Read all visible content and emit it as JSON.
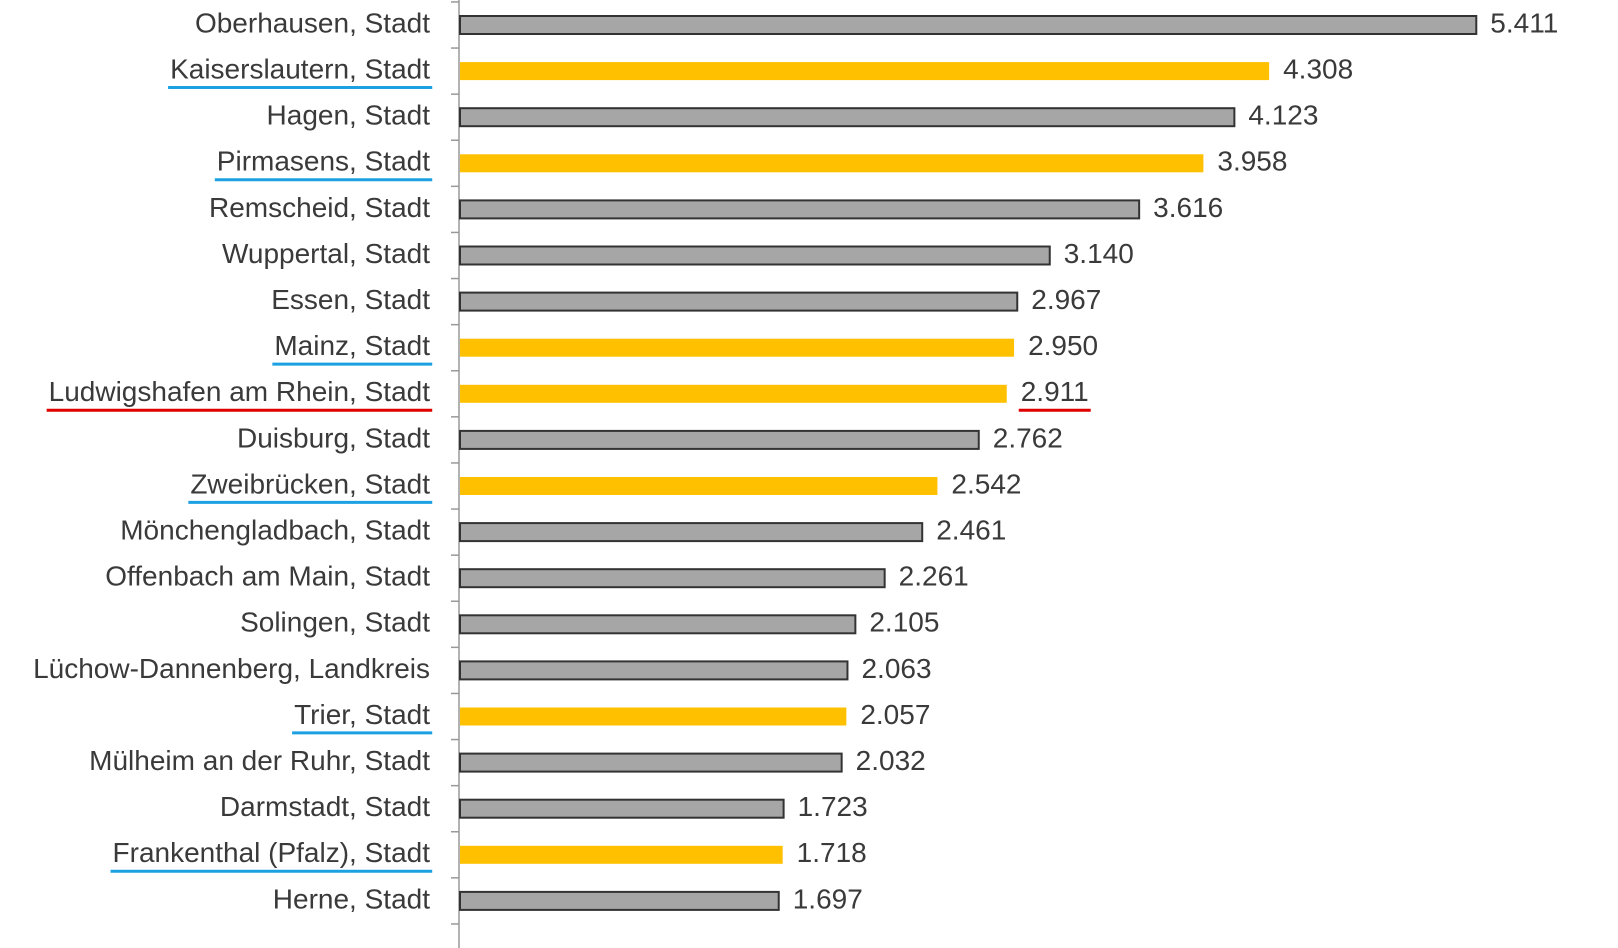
{
  "chart_data": {
    "type": "hbar",
    "categories": [
      "Oberhausen, Stadt",
      "Kaiserslautern, Stadt",
      "Hagen, Stadt",
      "Pirmasens, Stadt",
      "Remscheid, Stadt",
      "Wuppertal, Stadt",
      "Essen, Stadt",
      "Mainz, Stadt",
      "Ludwigshafen am Rhein, Stadt",
      "Duisburg, Stadt",
      "Zweibrücken, Stadt",
      "Mönchengladbach, Stadt",
      "Offenbach am Main, Stadt",
      "Solingen, Stadt",
      "Lüchow-Dannenberg, Landkreis",
      "Trier, Stadt",
      "Mülheim an der Ruhr, Stadt",
      "Darmstadt, Stadt",
      "Frankenthal (Pfalz), Stadt",
      "Herne, Stadt"
    ],
    "values": [
      5.411,
      4.308,
      4.123,
      3.958,
      3.616,
      3.14,
      2.967,
      2.95,
      2.911,
      2.762,
      2.542,
      2.461,
      2.261,
      2.105,
      2.063,
      2.057,
      2.032,
      1.723,
      1.718,
      1.697
    ],
    "value_labels": [
      "5.411",
      "4.308",
      "4.123",
      "3.958",
      "3.616",
      "3.140",
      "2.967",
      "2.950",
      "2.911",
      "2.762",
      "2.542",
      "2.461",
      "2.261",
      "2.105",
      "2.063",
      "2.057",
      "2.032",
      "1.723",
      "1.718",
      "1.697"
    ],
    "colors": [
      "#a6a6a6",
      "#ffc000",
      "#a6a6a6",
      "#ffc000",
      "#a6a6a6",
      "#a6a6a6",
      "#a6a6a6",
      "#ffc000",
      "#ffc000",
      "#a6a6a6",
      "#ffc000",
      "#a6a6a6",
      "#a6a6a6",
      "#a6a6a6",
      "#a6a6a6",
      "#ffc000",
      "#a6a6a6",
      "#a6a6a6",
      "#ffc000",
      "#a6a6a6"
    ],
    "label_underlines": [
      null,
      "#1ba1e2",
      null,
      "#1ba1e2",
      null,
      null,
      null,
      "#1ba1e2",
      "#e00000",
      null,
      "#1ba1e2",
      null,
      null,
      null,
      null,
      "#1ba1e2",
      null,
      null,
      "#1ba1e2",
      null
    ],
    "value_label_underlines": [
      null,
      null,
      null,
      null,
      null,
      null,
      null,
      null,
      "#e00000",
      null,
      null,
      null,
      null,
      null,
      null,
      null,
      null,
      null,
      null,
      null
    ],
    "xlim": [
      0,
      5.5
    ]
  }
}
